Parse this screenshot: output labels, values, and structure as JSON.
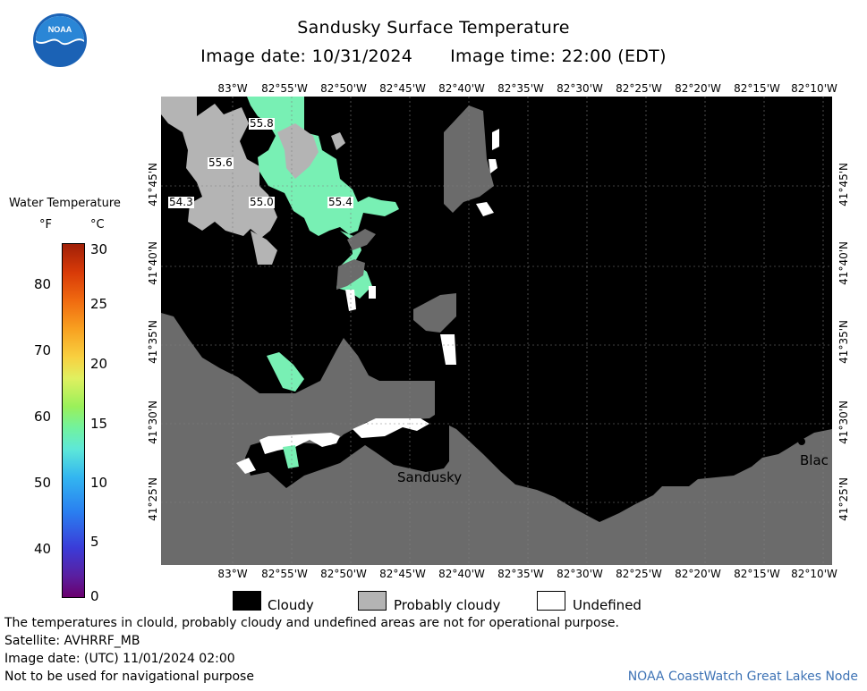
{
  "header": {
    "title": "Sandusky Surface Temperature",
    "image_date": "Image date: 10/31/2024",
    "image_time": "Image time: 22:00 (EDT)"
  },
  "logo": {
    "text": "NOAA",
    "icon": "noaa-logo-icon"
  },
  "colorbar": {
    "title": "Water Temperature",
    "unit_f": "°F",
    "unit_c": "°C",
    "f_ticks": [
      "80",
      "70",
      "60",
      "50",
      "40"
    ],
    "c_ticks": [
      "30",
      "25",
      "20",
      "15",
      "10",
      "5",
      "0"
    ]
  },
  "map": {
    "lon_labels": [
      "83°W",
      "82°55'W",
      "82°50'W",
      "82°45'W",
      "82°40'W",
      "82°35'W",
      "82°30'W",
      "82°25'W",
      "82°20'W",
      "82°15'W",
      "82°10'W"
    ],
    "lat_labels": [
      "41°45'N",
      "41°40'N",
      "41°35'N",
      "41°30'N",
      "41°25'N"
    ],
    "temp_labels": [
      "55.8",
      "55.6",
      "54.3",
      "55.0",
      "55.4"
    ],
    "place_labels": [
      "Sandusky",
      "Blac"
    ],
    "colors": {
      "water_black": "#000000",
      "land": "#6b6b6b",
      "probably_cloudy": "#b4b4b4",
      "undefined": "#ffffff",
      "water_green": "#78f0b4"
    }
  },
  "legend": {
    "items": [
      {
        "label": "Cloudy",
        "color": "#000000"
      },
      {
        "label": "Probably cloudy",
        "color": "#b4b4b4"
      },
      {
        "label": "Undefined",
        "color": "#ffffff"
      }
    ]
  },
  "footer": {
    "note": "The temperatures in clould, probably cloudy and undefined areas are not for operational purpose.",
    "satellite": "Satellite: AVHRRF_MB",
    "utc_date": "Image date: (UTC) 11/01/2024  02:00",
    "nav_warning": "Not to be used for navigational purpose",
    "node": "NOAA CoastWatch Great Lakes Node"
  }
}
